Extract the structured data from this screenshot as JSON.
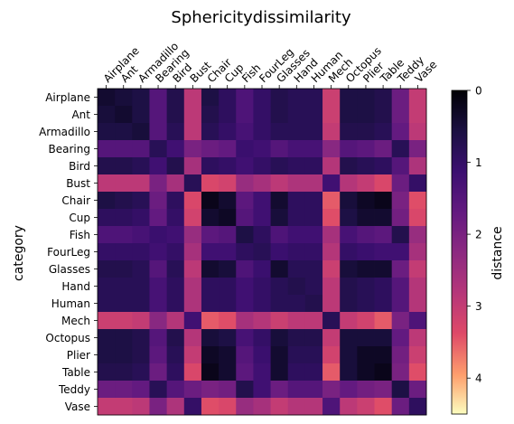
{
  "chart_data": {
    "type": "heatmap",
    "title": "Sphericitydissimilarity",
    "ylabel": "category",
    "colorbar_label": "distance",
    "colormap": "magma_r",
    "categories": [
      "Airplane",
      "Ant",
      "Armadillo",
      "Bearing",
      "Bird",
      "Bust",
      "Chair",
      "Cup",
      "Fish",
      "FourLeg",
      "Glasses",
      "Hand",
      "Human",
      "Mech",
      "Octopus",
      "Plier",
      "Table",
      "Teddy",
      "Vase"
    ],
    "colorbar_ticks": [
      0,
      1,
      2,
      3,
      4
    ],
    "vmin": 0,
    "vmax": 4.5,
    "values": [
      [
        0.4,
        0.5,
        0.6,
        1.5,
        0.7,
        2.9,
        0.6,
        0.9,
        1.4,
        1.0,
        0.7,
        0.8,
        0.8,
        3.1,
        0.6,
        0.6,
        0.7,
        1.8,
        3.0
      ],
      [
        0.5,
        0.4,
        0.6,
        1.5,
        0.7,
        2.9,
        0.7,
        0.9,
        1.4,
        1.0,
        0.7,
        0.8,
        0.8,
        3.1,
        0.6,
        0.6,
        0.7,
        1.8,
        3.0
      ],
      [
        0.6,
        0.6,
        0.5,
        1.5,
        0.8,
        2.9,
        0.8,
        1.0,
        1.3,
        1.0,
        0.8,
        0.8,
        0.8,
        3.0,
        0.7,
        0.7,
        0.8,
        1.7,
        2.9
      ],
      [
        1.5,
        1.5,
        1.5,
        0.8,
        1.2,
        2.0,
        1.8,
        1.7,
        1.1,
        1.2,
        1.5,
        1.3,
        1.3,
        2.2,
        1.5,
        1.6,
        1.8,
        0.8,
        2.0
      ],
      [
        0.7,
        0.7,
        0.8,
        1.2,
        0.7,
        2.6,
        0.9,
        1.0,
        1.2,
        1.0,
        0.8,
        0.9,
        0.9,
        2.8,
        0.7,
        0.8,
        0.9,
        1.5,
        2.7
      ],
      [
        2.9,
        2.9,
        2.9,
        2.0,
        2.6,
        0.8,
        3.3,
        3.2,
        2.4,
        2.6,
        2.9,
        2.7,
        2.7,
        1.2,
        2.8,
        3.0,
        3.3,
        1.8,
        1.0
      ],
      [
        0.6,
        0.7,
        0.8,
        1.8,
        0.9,
        3.3,
        0.2,
        0.4,
        1.6,
        1.2,
        0.4,
        0.9,
        0.9,
        3.5,
        0.5,
        0.3,
        0.2,
        2.0,
        3.4
      ],
      [
        0.9,
        0.9,
        1.0,
        1.7,
        1.0,
        3.2,
        0.4,
        0.3,
        1.5,
        1.2,
        0.5,
        0.9,
        0.9,
        3.4,
        0.6,
        0.4,
        0.4,
        1.9,
        3.3
      ],
      [
        1.4,
        1.4,
        1.3,
        1.1,
        1.2,
        2.4,
        1.6,
        1.5,
        0.6,
        0.9,
        1.4,
        1.2,
        1.2,
        2.6,
        1.3,
        1.5,
        1.6,
        0.7,
        2.4
      ],
      [
        1.0,
        1.0,
        1.0,
        1.2,
        1.0,
        2.6,
        1.2,
        1.2,
        0.9,
        0.8,
        1.1,
        1.0,
        1.0,
        2.8,
        1.0,
        1.1,
        1.2,
        1.2,
        2.6
      ],
      [
        0.7,
        0.7,
        0.8,
        1.5,
        0.8,
        2.9,
        0.4,
        0.5,
        1.4,
        1.1,
        0.4,
        0.8,
        0.8,
        3.1,
        0.5,
        0.4,
        0.4,
        1.8,
        3.0
      ],
      [
        0.8,
        0.8,
        0.8,
        1.3,
        0.9,
        2.7,
        0.9,
        0.9,
        1.2,
        1.0,
        0.8,
        0.7,
        0.8,
        2.9,
        0.7,
        0.8,
        0.9,
        1.5,
        2.8
      ],
      [
        0.8,
        0.8,
        0.8,
        1.3,
        0.9,
        2.7,
        0.9,
        0.9,
        1.2,
        1.0,
        0.8,
        0.8,
        0.7,
        2.9,
        0.7,
        0.8,
        0.9,
        1.5,
        2.8
      ],
      [
        3.1,
        3.1,
        3.0,
        2.2,
        2.8,
        1.2,
        3.5,
        3.4,
        2.6,
        2.8,
        3.1,
        2.9,
        2.9,
        0.8,
        3.0,
        3.2,
        3.5,
        2.0,
        1.4
      ],
      [
        0.6,
        0.6,
        0.7,
        1.5,
        0.7,
        2.8,
        0.5,
        0.6,
        1.3,
        1.0,
        0.5,
        0.7,
        0.7,
        3.0,
        0.5,
        0.5,
        0.5,
        1.7,
        2.9
      ],
      [
        0.6,
        0.6,
        0.7,
        1.6,
        0.8,
        3.0,
        0.3,
        0.4,
        1.5,
        1.1,
        0.4,
        0.8,
        0.8,
        3.2,
        0.5,
        0.3,
        0.3,
        1.9,
        3.1
      ],
      [
        0.7,
        0.7,
        0.8,
        1.8,
        0.9,
        3.3,
        0.2,
        0.4,
        1.6,
        1.2,
        0.4,
        0.9,
        0.9,
        3.5,
        0.5,
        0.3,
        0.2,
        2.0,
        3.4
      ],
      [
        1.8,
        1.8,
        1.7,
        0.8,
        1.5,
        1.8,
        2.0,
        1.9,
        0.7,
        1.2,
        1.8,
        1.5,
        1.5,
        2.0,
        1.7,
        1.9,
        2.0,
        0.6,
        1.8
      ],
      [
        3.0,
        3.0,
        2.9,
        2.0,
        2.7,
        1.0,
        3.4,
        3.3,
        2.4,
        2.6,
        3.0,
        2.8,
        2.8,
        1.4,
        2.9,
        3.1,
        3.4,
        1.8,
        0.9
      ]
    ]
  }
}
